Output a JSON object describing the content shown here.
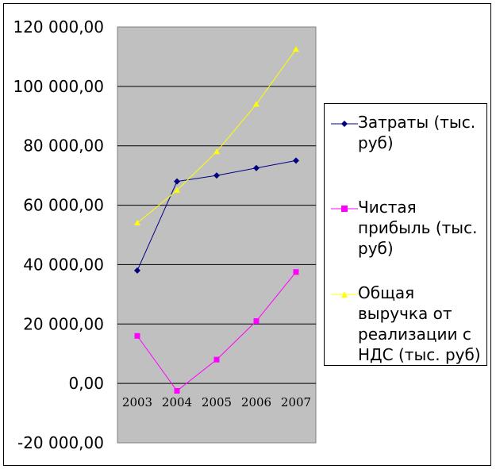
{
  "chart_data": {
    "type": "line",
    "title": "",
    "xlabel": "",
    "ylabel": "",
    "categories": [
      "2003",
      "2004",
      "2005",
      "2006",
      "2007"
    ],
    "y_ticks": [
      "120 000,00",
      "100 000,00",
      "80 000,00",
      "60 000,00",
      "40 000,00",
      "20 000,00",
      "0,00",
      "-20 000,00"
    ],
    "ylim": [
      -20000,
      120000
    ],
    "plot_background": "#c0c0c0",
    "grid": true,
    "legend_position": "right",
    "series": [
      {
        "name": "Затраты (тыс. руб)",
        "values": [
          38000,
          68000,
          70000,
          72500,
          75000
        ],
        "color": "#000080",
        "marker": "diamond"
      },
      {
        "name": "Чистая прибыль (тыс. руб)",
        "values": [
          16000,
          -2500,
          8000,
          21000,
          37500
        ],
        "color": "#ff00ff",
        "marker": "square"
      },
      {
        "name": "Общая выручка от реализации с НДС (тыс. руб)",
        "values": [
          54000,
          65000,
          78000,
          94000,
          112500
        ],
        "color": "#ffff00",
        "marker": "triangle"
      }
    ]
  }
}
